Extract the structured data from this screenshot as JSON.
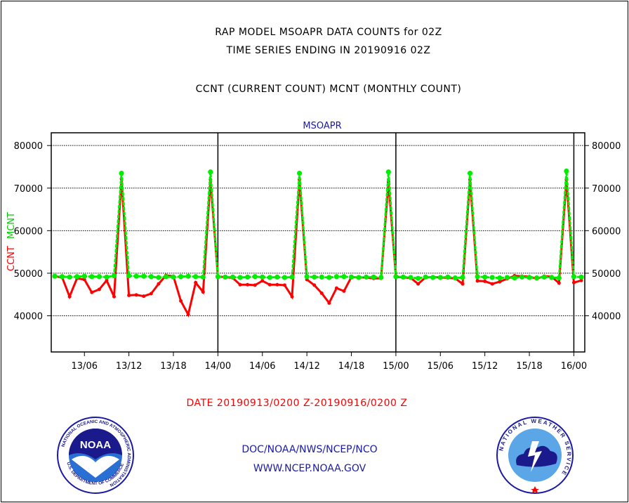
{
  "header": {
    "title": "RAP MODEL MSOAPR DATA COUNTS for 02Z",
    "subtitle1": "TIME SERIES ENDING IN 20190916 02Z",
    "subtitle2": "CCNT (CURRENT COUNT) MCNT (MONTHLY COUNT)"
  },
  "footer": {
    "date_range": "DATE 20190913/0200 Z-20190916/0200 Z",
    "credit1": "DOC/NOAA/NWS/NCEP/NCO",
    "credit2": "WWW.NCEP.NOAA.GOV"
  },
  "logos": {
    "noaa_text": "NOAA",
    "noaa_ring_top": "NATIONAL OCEANIC AND ATMOSPHERIC ADMINISTRATION",
    "noaa_ring_bottom": "U.S. DEPARTMENT OF COMMERCE",
    "nws_ring": "NATIONAL WEATHER SERVICE"
  },
  "chart_data": {
    "type": "line",
    "title": "MSOAPR",
    "ylabel_series": [
      "CCNT",
      "MCNT"
    ],
    "ylim": [
      31500,
      83000
    ],
    "yticks": [
      40000,
      50000,
      60000,
      70000,
      80000
    ],
    "ytick_labels": [
      "40000",
      "50000",
      "60000",
      "70000",
      "80000"
    ],
    "x_tick_hours": [
      4,
      10,
      16,
      22,
      28,
      34,
      40,
      46,
      52,
      58,
      64,
      70
    ],
    "x_tick_labels": [
      "13/06",
      "13/12",
      "13/18",
      "14/00",
      "14/06",
      "14/12",
      "14/18",
      "15/00",
      "15/06",
      "15/12",
      "15/18",
      "16/00"
    ],
    "day_boundary_hours": [
      22,
      46,
      70
    ],
    "x_start": "13/02",
    "x_end": "16/02",
    "grid": "horizontal dotted",
    "series": [
      {
        "name": "CCNT",
        "color": "#ff0000",
        "values": [
          49300,
          49000,
          44500,
          48800,
          48500,
          45500,
          46200,
          48300,
          44500,
          72200,
          44800,
          44900,
          44600,
          45200,
          47500,
          49500,
          49300,
          43500,
          40300,
          47800,
          45600,
          72000,
          49200,
          49100,
          48900,
          47300,
          47300,
          47200,
          48200,
          47300,
          47300,
          47200,
          44500,
          72000,
          48500,
          47200,
          45300,
          43000,
          46500,
          45800,
          49100,
          49000,
          49000,
          48800,
          48800,
          71500,
          49200,
          49000,
          48900,
          47500,
          49000,
          49100,
          49000,
          48900,
          48800,
          47500,
          72000,
          48200,
          48100,
          47500,
          48000,
          48700,
          49400,
          49300,
          49200,
          48700,
          49300,
          49200,
          47700,
          72000,
          47800,
          48300
        ]
      },
      {
        "name": "MCNT",
        "color": "#00ee00",
        "values": [
          49300,
          49200,
          49100,
          49200,
          49300,
          49200,
          49200,
          49100,
          49400,
          73500,
          49400,
          49300,
          49300,
          49200,
          49000,
          49200,
          49100,
          49200,
          49300,
          49200,
          49100,
          73800,
          49200,
          49100,
          49100,
          49000,
          49100,
          49200,
          49100,
          49000,
          49100,
          49000,
          49100,
          73500,
          49200,
          49100,
          49100,
          49000,
          49200,
          49200,
          49100,
          49000,
          49100,
          49100,
          49000,
          73800,
          49200,
          49100,
          49000,
          48800,
          49100,
          49000,
          49000,
          49100,
          48900,
          49000,
          73500,
          49200,
          49100,
          49000,
          48900,
          49000,
          48900,
          49100,
          49000,
          48900,
          49100,
          49000,
          48900,
          74000,
          49200,
          49100
        ]
      }
    ]
  }
}
